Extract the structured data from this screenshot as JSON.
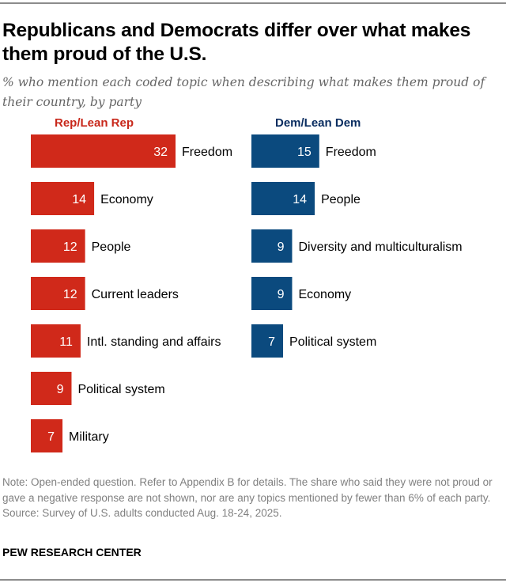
{
  "chart_data": [
    {
      "type": "bar",
      "orientation": "horizontal",
      "name": "Rep/Lean Rep",
      "color": "#d0291a",
      "header_color": "#c8281b",
      "categories": [
        "Freedom",
        "Economy",
        "People",
        "Current leaders",
        "Intl. standing and affairs",
        "Political system",
        "Military"
      ],
      "values": [
        32,
        14,
        12,
        12,
        11,
        9,
        7
      ]
    },
    {
      "type": "bar",
      "orientation": "horizontal",
      "name": "Dem/Lean Dem",
      "color": "#0b4a7e",
      "header_color": "#0a2d60",
      "categories": [
        "Freedom",
        "People",
        "Diversity and multiculturalism",
        "Economy",
        "Political system"
      ],
      "values": [
        15,
        14,
        9,
        9,
        7
      ]
    }
  ],
  "title": "Republicans and Democrats differ over what makes them proud of the U.S.",
  "subtitle": "% who mention each coded topic when describing what makes them proud of their country, by party",
  "note": "Note: Open-ended question. Refer to Appendix B for details. The share who said they were not proud or gave a negative response are not shown, nor are any topics mentioned by fewer than 6% of each party.",
  "source": "Source: Survey of U.S. adults conducted Aug. 18-24, 2025.",
  "brand": "PEW RESEARCH CENTER"
}
